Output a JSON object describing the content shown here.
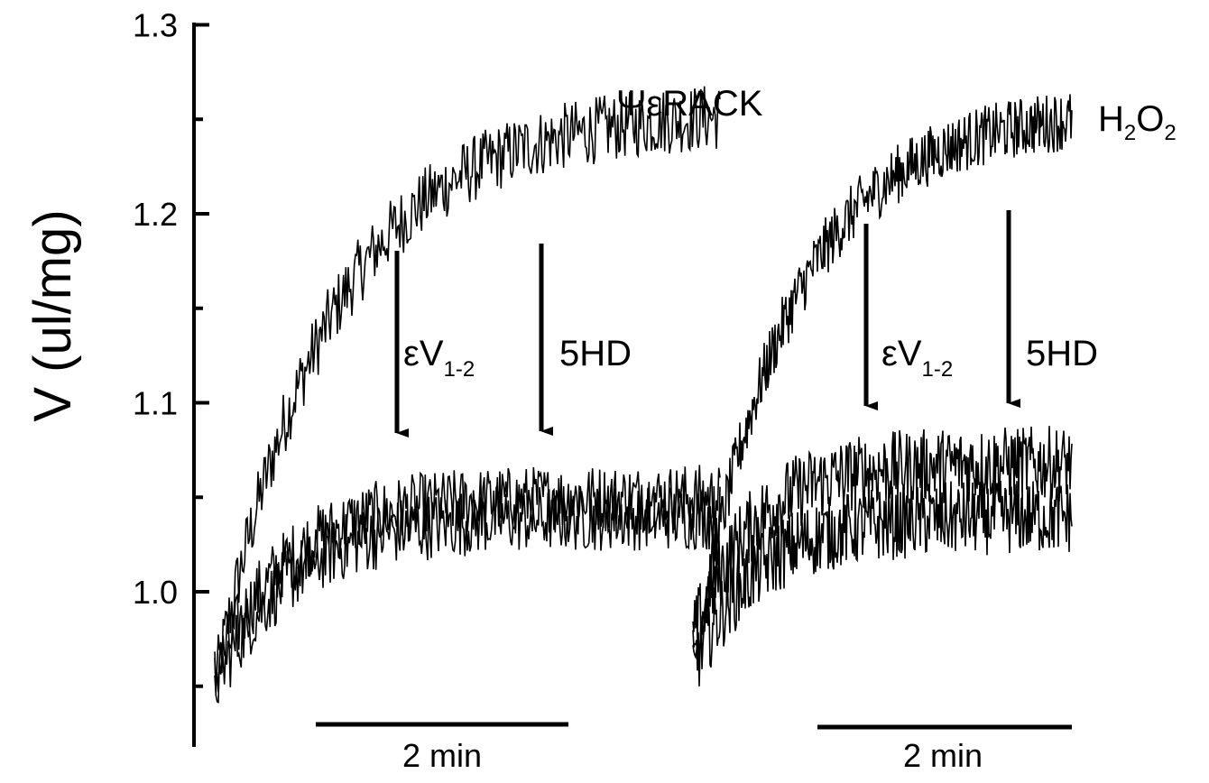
{
  "chart_data": {
    "type": "line",
    "ylabel": "V (ul/mg)",
    "ylim": [
      0.92,
      1.3
    ],
    "yticks": [
      "1.0",
      "1.1",
      "1.2",
      "1.3"
    ],
    "grid": false,
    "scale_bar": {
      "label": "2 min",
      "duration_min": 2
    },
    "panels": [
      {
        "label": "ΨεRACK",
        "duration_min": 4,
        "series": [
          {
            "start": 0.95,
            "plateau": 1.255,
            "tau_min": 0.9,
            "noise": 0.018
          },
          {
            "start": 0.955,
            "plateau": 1.05,
            "tau_min": 0.55,
            "noise": 0.018
          },
          {
            "start": 0.95,
            "plateau": 1.04,
            "tau_min": 0.6,
            "noise": 0.018
          }
        ],
        "arrows": [
          {
            "label": "εV",
            "subscript": "1-2",
            "from_y": 1.18,
            "to_y": 1.075
          },
          {
            "label": "5HD",
            "subscript": "",
            "from_y": 1.185,
            "to_y": 1.077
          }
        ]
      },
      {
        "label_main": "H",
        "label_sub1": "2",
        "label_mid": "O",
        "label_sub2": "2",
        "duration_min": 3,
        "series": [
          {
            "start": 0.96,
            "plateau": 1.255,
            "tau_min": 0.75,
            "noise": 0.016
          },
          {
            "start": 0.975,
            "plateau": 1.068,
            "tau_min": 0.45,
            "noise": 0.02
          },
          {
            "start": 0.96,
            "plateau": 1.04,
            "tau_min": 0.5,
            "noise": 0.02
          }
        ],
        "arrows": [
          {
            "label": "εV",
            "subscript": "1-2",
            "from_y": 1.195,
            "to_y": 1.09
          },
          {
            "label": "5HD",
            "subscript": "",
            "from_y": 1.2,
            "to_y": 1.093
          }
        ]
      }
    ]
  }
}
